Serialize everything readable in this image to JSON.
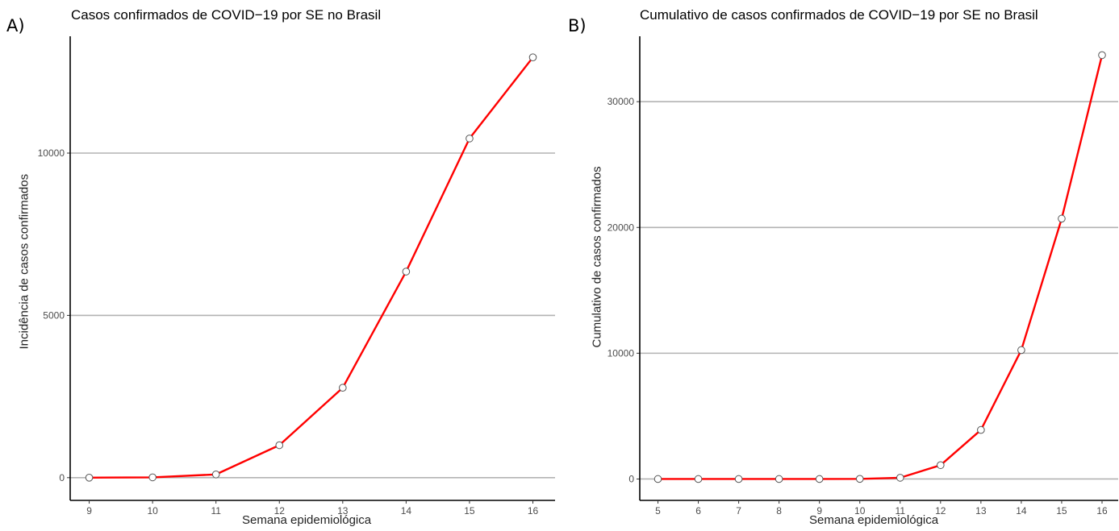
{
  "panels": [
    {
      "letter": "A)"
    },
    {
      "letter": "B)"
    }
  ],
  "chart_data": [
    {
      "type": "line",
      "title": "Casos confirmados de COVID−19 por SE no Brasil",
      "xlabel": "Semana epidemiológica",
      "ylabel": "Incidência de casos confirmados",
      "x": [
        9,
        10,
        11,
        12,
        13,
        14,
        15,
        16
      ],
      "series": [
        {
          "values": [
            0,
            10,
            100,
            1000,
            2770,
            6350,
            10450,
            12950
          ]
        }
      ],
      "xlim": [
        8.7,
        16.35
      ],
      "ylim": [
        -700,
        13600
      ],
      "yticks": [
        0,
        5000,
        10000
      ],
      "grid": "horizontal major",
      "line_color": "#ff0000",
      "marker_fill": "#ffffff"
    },
    {
      "type": "line",
      "title": "Cumulativo de casos confirmados de COVID−19 por SE no Brasil",
      "xlabel": "Semana epidemiológica",
      "ylabel": "Cumulativo de casos confirmados",
      "x": [
        5,
        6,
        7,
        8,
        9,
        10,
        11,
        12,
        13,
        14,
        15,
        16
      ],
      "series": [
        {
          "values": [
            0,
            0,
            0,
            0,
            0,
            10,
            100,
            1100,
            3900,
            10250,
            20700,
            33700
          ]
        }
      ],
      "xlim": [
        4.55,
        16.4
      ],
      "ylim": [
        -1700,
        35200
      ],
      "yticks": [
        0,
        10000,
        20000,
        30000
      ],
      "grid": "horizontal major",
      "line_color": "#ff0000",
      "marker_fill": "#ffffff"
    }
  ]
}
